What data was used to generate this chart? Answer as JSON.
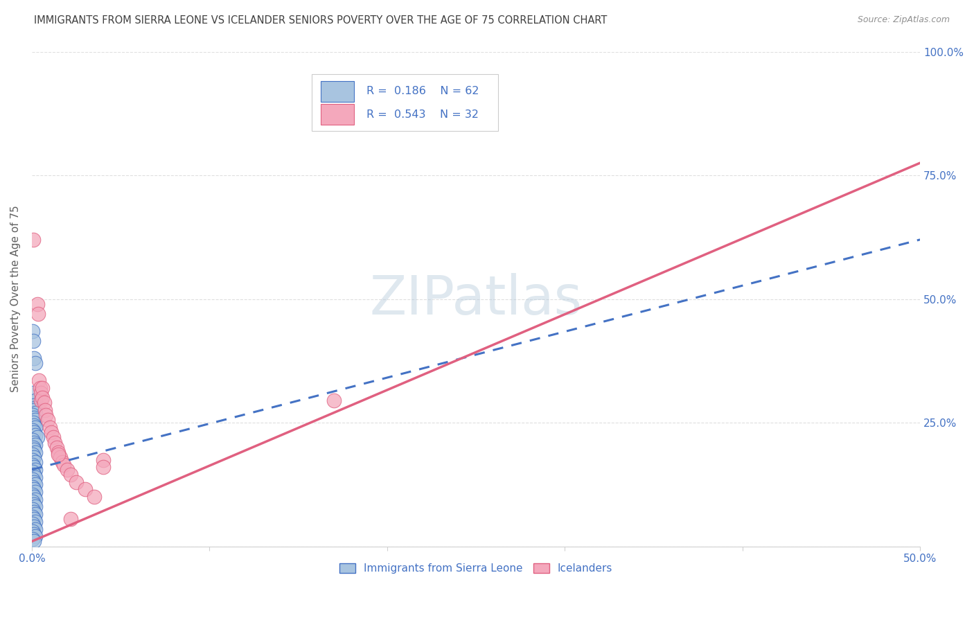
{
  "title": "IMMIGRANTS FROM SIERRA LEONE VS ICELANDER SENIORS POVERTY OVER THE AGE OF 75 CORRELATION CHART",
  "source": "Source: ZipAtlas.com",
  "ylabel": "Seniors Poverty Over the Age of 75",
  "legend_labels": [
    "Immigrants from Sierra Leone",
    "Icelanders"
  ],
  "r_blue": 0.186,
  "n_blue": 62,
  "r_pink": 0.543,
  "n_pink": 32,
  "xlim": [
    0.0,
    0.5
  ],
  "ylim": [
    0.0,
    1.0
  ],
  "xtick_vals": [
    0.0,
    0.1,
    0.2,
    0.3,
    0.4,
    0.5
  ],
  "xtick_labels": [
    "0.0%",
    "",
    "",
    "",
    "",
    "50.0%"
  ],
  "ytick_vals": [
    0.0,
    0.25,
    0.5,
    0.75,
    1.0
  ],
  "ytick_labels_right": [
    "",
    "25.0%",
    "50.0%",
    "75.0%",
    "100.0%"
  ],
  "watermark": "ZIPatlas",
  "blue_color": "#a8c4e0",
  "pink_color": "#f4a8bc",
  "blue_line_color": "#4472c4",
  "pink_line_color": "#e06080",
  "title_color": "#404040",
  "axis_label_color": "#4472c4",
  "blue_line_x0": 0.0,
  "blue_line_y0": 0.155,
  "blue_line_x1": 0.5,
  "blue_line_y1": 0.62,
  "pink_line_x0": 0.0,
  "pink_line_y0": 0.01,
  "pink_line_x1": 0.5,
  "pink_line_y1": 0.775,
  "blue_points": [
    [
      0.0005,
      0.435
    ],
    [
      0.0008,
      0.415
    ],
    [
      0.001,
      0.38
    ],
    [
      0.002,
      0.37
    ],
    [
      0.0005,
      0.31
    ],
    [
      0.002,
      0.295
    ],
    [
      0.001,
      0.285
    ],
    [
      0.0015,
      0.28
    ],
    [
      0.001,
      0.275
    ],
    [
      0.002,
      0.27
    ],
    [
      0.0005,
      0.265
    ],
    [
      0.001,
      0.26
    ],
    [
      0.002,
      0.255
    ],
    [
      0.0008,
      0.25
    ],
    [
      0.001,
      0.245
    ],
    [
      0.002,
      0.24
    ],
    [
      0.0005,
      0.235
    ],
    [
      0.001,
      0.23
    ],
    [
      0.002,
      0.225
    ],
    [
      0.003,
      0.22
    ],
    [
      0.0005,
      0.215
    ],
    [
      0.001,
      0.21
    ],
    [
      0.002,
      0.205
    ],
    [
      0.0008,
      0.2
    ],
    [
      0.001,
      0.195
    ],
    [
      0.002,
      0.19
    ],
    [
      0.0005,
      0.185
    ],
    [
      0.001,
      0.18
    ],
    [
      0.0003,
      0.175
    ],
    [
      0.002,
      0.17
    ],
    [
      0.0005,
      0.165
    ],
    [
      0.001,
      0.16
    ],
    [
      0.002,
      0.155
    ],
    [
      0.0003,
      0.15
    ],
    [
      0.001,
      0.145
    ],
    [
      0.002,
      0.14
    ],
    [
      0.0005,
      0.135
    ],
    [
      0.001,
      0.13
    ],
    [
      0.002,
      0.125
    ],
    [
      0.0003,
      0.12
    ],
    [
      0.001,
      0.115
    ],
    [
      0.002,
      0.11
    ],
    [
      0.0005,
      0.105
    ],
    [
      0.001,
      0.1
    ],
    [
      0.002,
      0.095
    ],
    [
      0.0003,
      0.09
    ],
    [
      0.001,
      0.085
    ],
    [
      0.002,
      0.08
    ],
    [
      0.0005,
      0.075
    ],
    [
      0.001,
      0.07
    ],
    [
      0.002,
      0.065
    ],
    [
      0.0003,
      0.06
    ],
    [
      0.001,
      0.055
    ],
    [
      0.002,
      0.05
    ],
    [
      0.0005,
      0.045
    ],
    [
      0.001,
      0.04
    ],
    [
      0.002,
      0.035
    ],
    [
      0.0003,
      0.03
    ],
    [
      0.001,
      0.025
    ],
    [
      0.002,
      0.02
    ],
    [
      0.0003,
      0.015
    ],
    [
      0.001,
      0.01
    ]
  ],
  "pink_points": [
    [
      0.0008,
      0.62
    ],
    [
      0.003,
      0.49
    ],
    [
      0.0035,
      0.47
    ],
    [
      0.004,
      0.335
    ],
    [
      0.0045,
      0.32
    ],
    [
      0.005,
      0.31
    ],
    [
      0.005,
      0.295
    ],
    [
      0.006,
      0.32
    ],
    [
      0.006,
      0.3
    ],
    [
      0.007,
      0.29
    ],
    [
      0.0075,
      0.275
    ],
    [
      0.008,
      0.265
    ],
    [
      0.009,
      0.255
    ],
    [
      0.01,
      0.24
    ],
    [
      0.011,
      0.23
    ],
    [
      0.012,
      0.22
    ],
    [
      0.013,
      0.21
    ],
    [
      0.014,
      0.2
    ],
    [
      0.015,
      0.19
    ],
    [
      0.016,
      0.18
    ],
    [
      0.017,
      0.17
    ],
    [
      0.018,
      0.165
    ],
    [
      0.02,
      0.155
    ],
    [
      0.022,
      0.145
    ],
    [
      0.025,
      0.13
    ],
    [
      0.03,
      0.115
    ],
    [
      0.035,
      0.1
    ],
    [
      0.04,
      0.175
    ],
    [
      0.04,
      0.16
    ],
    [
      0.015,
      0.185
    ],
    [
      0.17,
      0.295
    ],
    [
      0.022,
      0.055
    ]
  ]
}
